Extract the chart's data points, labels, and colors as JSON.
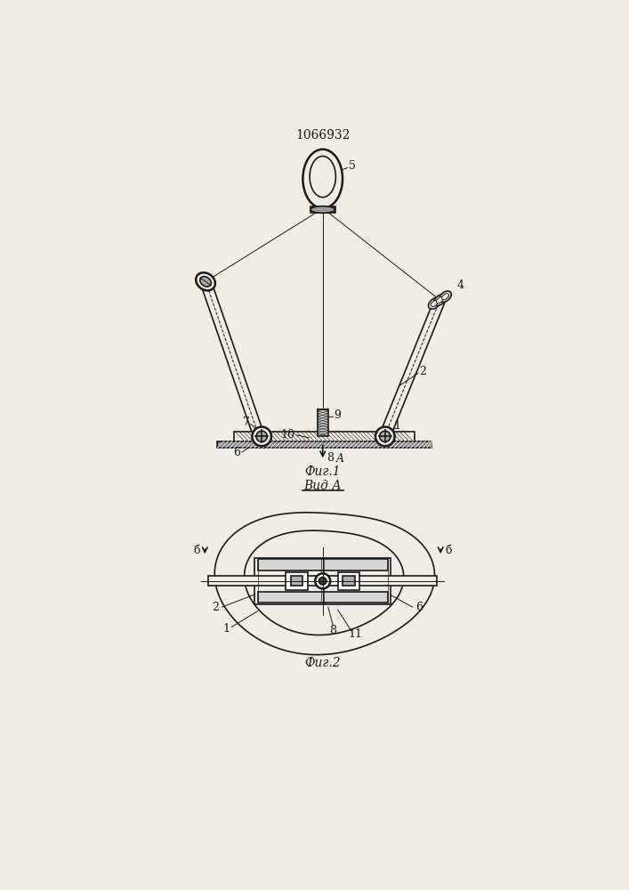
{
  "title": "1066932",
  "fig1_caption": "Фиг.1",
  "fig2_caption": "Фиг.2",
  "vid_a_label": "Вид А",
  "background_color": "#f0ede6",
  "line_color": "#1a1a1a",
  "line_width": 1.2,
  "thin_line": 0.7,
  "thick_line": 1.8,
  "label_fontsize": 9,
  "title_fontsize": 10
}
